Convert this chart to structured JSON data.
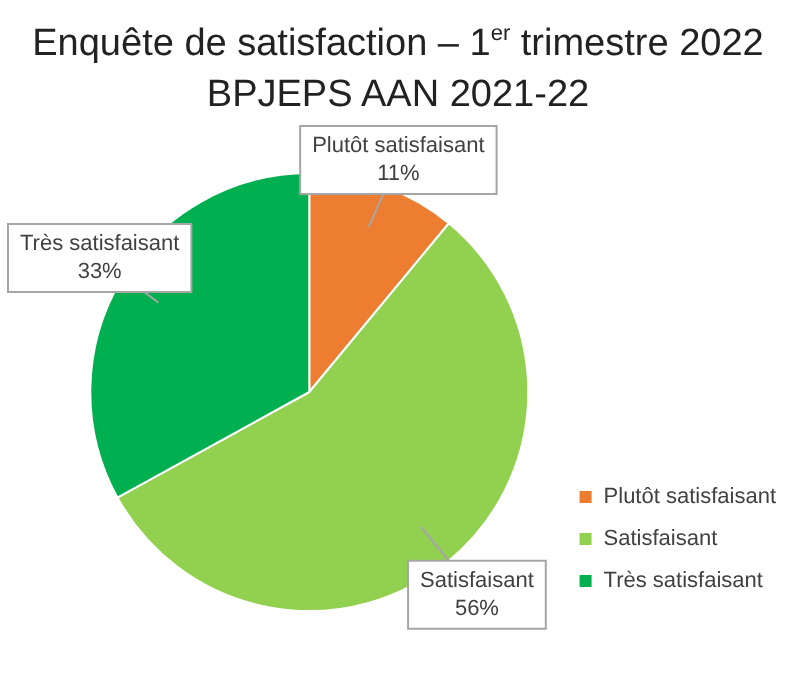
{
  "chart_data": {
    "type": "pie",
    "title": "Enquête de satisfaction – 1$^{er}$ trimestre 2022",
    "subtitle": "BPJEPS AAN 2021-22",
    "categories": [
      "Plutôt satisfaisant",
      "Satisfaisant",
      "Très satisfaisant"
    ],
    "values": [
      11,
      56,
      33
    ],
    "colors": [
      "#ed7d31",
      "#92d050",
      "#00b050"
    ],
    "value_labels": [
      "11%",
      "56%",
      "33%"
    ],
    "legend": "bottom right"
  }
}
